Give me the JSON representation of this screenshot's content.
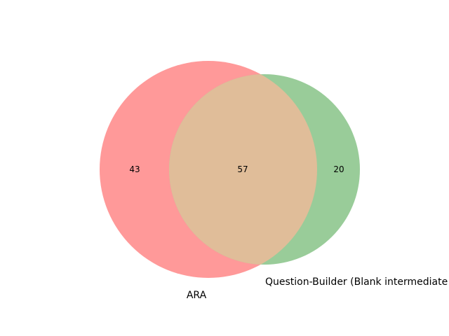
{
  "venn": {
    "sets": [
      {
        "label": "ARA",
        "color": "#ff9999"
      },
      {
        "label": "Question-Builder (Blank intermediate step)",
        "color": "#99cc99"
      }
    ],
    "overlap_color": "#e0bd99",
    "regions": {
      "only_a": "43",
      "both": "57",
      "only_b": "20"
    }
  }
}
